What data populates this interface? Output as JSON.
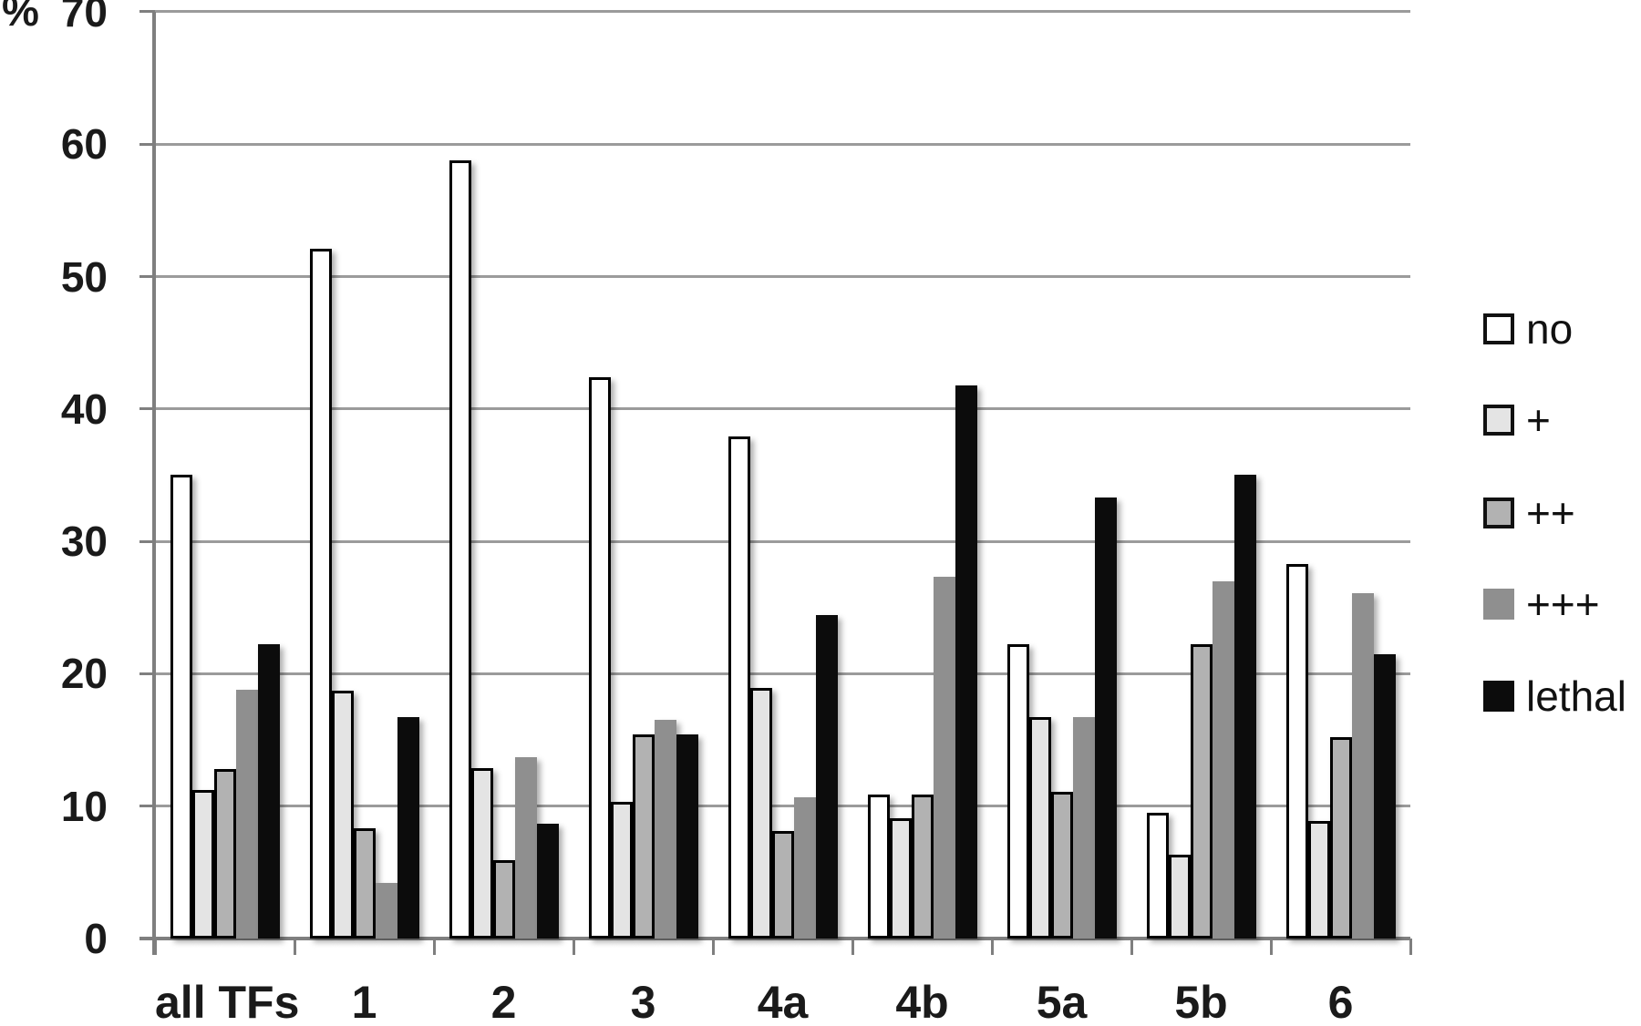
{
  "chart_data": {
    "type": "bar",
    "title": "",
    "ylabel": "%",
    "xlabel": "",
    "ylim": [
      0,
      70
    ],
    "yticks": [
      0,
      10,
      20,
      30,
      40,
      50,
      60,
      70
    ],
    "grid": true,
    "legend_position": "right",
    "categories": [
      "all TFs",
      "1",
      "2",
      "3",
      "4a",
      "4b",
      "5a",
      "5b",
      "6"
    ],
    "series": [
      {
        "name": "no",
        "color": "#ffffff",
        "border": true,
        "values": [
          35.0,
          52.1,
          58.8,
          42.4,
          37.9,
          10.9,
          22.2,
          9.5,
          28.3
        ]
      },
      {
        "name": "+",
        "color": "#e4e4e4",
        "border": true,
        "values": [
          11.2,
          18.7,
          12.9,
          10.3,
          18.9,
          9.1,
          16.7,
          6.3,
          8.9
        ]
      },
      {
        "name": "++",
        "color": "#b2b2b2",
        "border": true,
        "values": [
          12.8,
          8.3,
          5.9,
          15.4,
          8.1,
          10.9,
          11.1,
          22.2,
          15.2
        ]
      },
      {
        "name": "+++",
        "color": "#8f8f8f",
        "border": false,
        "values": [
          18.8,
          4.2,
          13.7,
          16.5,
          10.7,
          27.3,
          16.7,
          27.0,
          26.1
        ]
      },
      {
        "name": "lethal",
        "color": "#0c0c0c",
        "border": false,
        "values": [
          22.2,
          16.7,
          8.7,
          15.4,
          24.4,
          41.8,
          33.3,
          35.0,
          21.5
        ]
      }
    ]
  }
}
